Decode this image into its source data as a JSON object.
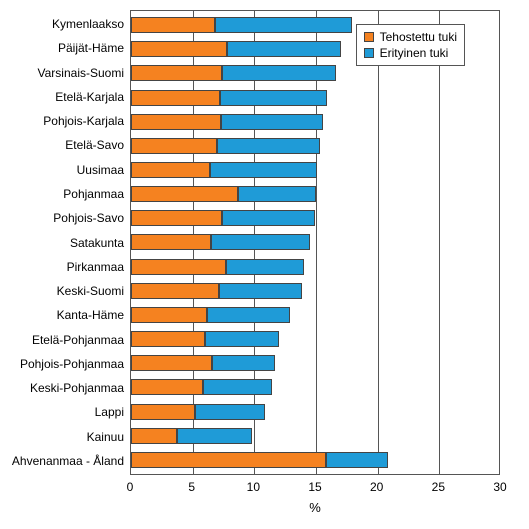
{
  "chart": {
    "type": "stacked-bar-horizontal",
    "background_color": "#ffffff",
    "border_color": "#555555",
    "label_fontsize": 12,
    "x_axis": {
      "title": "%",
      "min": 0,
      "max": 30,
      "ticks": [
        0,
        5,
        10,
        15,
        20,
        25,
        30
      ],
      "grid_color": "#555555"
    },
    "series": [
      {
        "key": "tehostettu",
        "label": "Tehostettu tuki",
        "color": "#f58220"
      },
      {
        "key": "erityinen",
        "label": "Erityinen tuki",
        "color": "#1f9bd7"
      }
    ],
    "categories": [
      {
        "label": "Kymenlaakso",
        "tehostettu": 6.8,
        "erityinen": 11.1
      },
      {
        "label": "Päijät-Häme",
        "tehostettu": 7.8,
        "erityinen": 9.2
      },
      {
        "label": "Varsinais-Suomi",
        "tehostettu": 7.4,
        "erityinen": 9.2
      },
      {
        "label": "Etelä-Karjala",
        "tehostettu": 7.2,
        "erityinen": 8.7
      },
      {
        "label": "Pohjois-Karjala",
        "tehostettu": 7.3,
        "erityinen": 8.3
      },
      {
        "label": "Etelä-Savo",
        "tehostettu": 7.0,
        "erityinen": 8.3
      },
      {
        "label": "Uusimaa",
        "tehostettu": 6.4,
        "erityinen": 8.7
      },
      {
        "label": "Pohjanmaa",
        "tehostettu": 8.7,
        "erityinen": 6.3
      },
      {
        "label": "Pohjois-Savo",
        "tehostettu": 7.4,
        "erityinen": 7.5
      },
      {
        "label": "Satakunta",
        "tehostettu": 6.5,
        "erityinen": 8.0
      },
      {
        "label": "Pirkanmaa",
        "tehostettu": 7.7,
        "erityinen": 6.3
      },
      {
        "label": "Keski-Suomi",
        "tehostettu": 7.1,
        "erityinen": 6.8
      },
      {
        "label": "Kanta-Häme",
        "tehostettu": 6.2,
        "erityinen": 6.7
      },
      {
        "label": "Etelä-Pohjanmaa",
        "tehostettu": 6.0,
        "erityinen": 6.0
      },
      {
        "label": "Pohjois-Pohjanmaa",
        "tehostettu": 6.6,
        "erityinen": 5.1
      },
      {
        "label": "Keski-Pohjanmaa",
        "tehostettu": 5.8,
        "erityinen": 5.6
      },
      {
        "label": "Lappi",
        "tehostettu": 5.2,
        "erityinen": 5.7
      },
      {
        "label": "Kainuu",
        "tehostettu": 3.7,
        "erityinen": 6.1
      },
      {
        "label": "Ahvenanmaa - Åland",
        "tehostettu": 15.8,
        "erityinen": 5.0
      }
    ]
  }
}
